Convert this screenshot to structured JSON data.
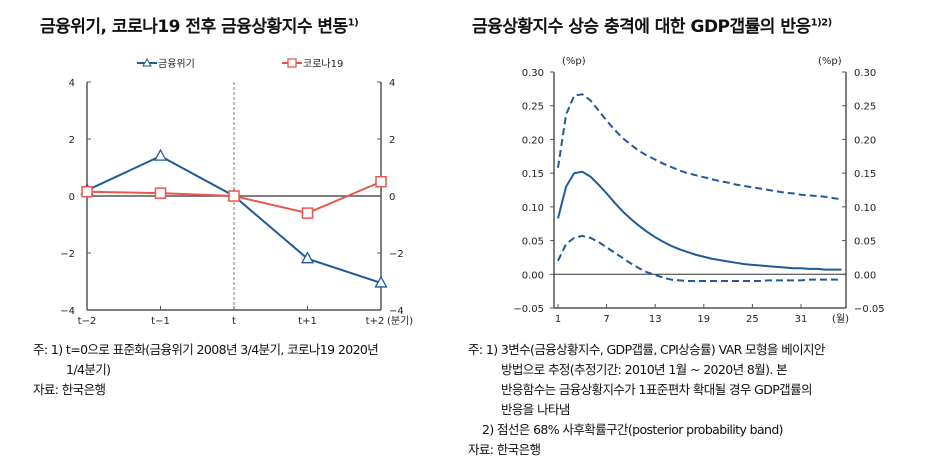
{
  "left": {
    "title": "금융위기, 코로나19 전후 금융상황지수 변동",
    "title_sup": "1)",
    "notes": [
      "주: 1) t=0으로 표준화(금융위기 2008년 3/4분기, 코로나19 2020년",
      "1/4분기)",
      "자료: 한국은행"
    ]
  },
  "right": {
    "title": "금융상황지수 상승 충격에 대한 GDP갭률의 반응",
    "title_sup": "1)2)",
    "notes": [
      "주: 1) 3변수(금융상황지수, GDP갭률, CPI상승률) VAR 모형을 베이지안",
      "방법으로 추정(추정기간: 2010년 1월 ~ 2020년 8월). 본",
      "반응함수는 금융상황지수가 1표준편차 확대될 경우 GDP갭률의",
      "반응을 나타냄",
      "2) 점선은 68% 사후확률구간(posterior probability band)",
      "자료: 한국은행"
    ]
  },
  "chart_data": [
    {
      "type": "line",
      "categories": [
        "t−2",
        "t−1",
        "t",
        "t+1",
        "t+2"
      ],
      "xlabel": "(분기)",
      "ylim": [
        -4,
        4
      ],
      "yticks": [
        "−4",
        "−2",
        "0",
        "2",
        "4"
      ],
      "legend": "top",
      "series": [
        {
          "name": "금융위기",
          "marker": "triangle",
          "color": "#1f5a9a",
          "values": [
            0.2,
            1.4,
            0,
            -2.2,
            -3.05
          ]
        },
        {
          "name": "코로나19",
          "marker": "square",
          "color": "#e8584a",
          "values": [
            0.15,
            0.1,
            0,
            -0.6,
            0.5
          ]
        }
      ]
    },
    {
      "type": "line",
      "x_range": [
        1,
        36
      ],
      "xticks": [
        "1",
        "7",
        "13",
        "19",
        "25",
        "31"
      ],
      "xlabel": "(월)",
      "ylabel_left": "(%p)",
      "ylabel_right": "(%p)",
      "ylim": [
        -0.05,
        0.3
      ],
      "yticks": [
        "−0.05",
        "0.00",
        "0.05",
        "0.10",
        "0.15",
        "0.20",
        "0.25",
        "0.30"
      ],
      "color": "#1f5a9a",
      "series": [
        {
          "style": "solid",
          "values": [
            0.083,
            0.13,
            0.15,
            0.152,
            0.145,
            0.133,
            0.12,
            0.106,
            0.093,
            0.082,
            0.072,
            0.063,
            0.055,
            0.048,
            0.042,
            0.037,
            0.033,
            0.029,
            0.026,
            0.023,
            0.021,
            0.019,
            0.017,
            0.015,
            0.014,
            0.013,
            0.012,
            0.011,
            0.01,
            0.009,
            0.009,
            0.008,
            0.008,
            0.007,
            0.007,
            0.007
          ]
        },
        {
          "style": "dashed",
          "values": [
            0.158,
            0.237,
            0.265,
            0.267,
            0.258,
            0.243,
            0.228,
            0.214,
            0.202,
            0.192,
            0.183,
            0.176,
            0.17,
            0.164,
            0.159,
            0.154,
            0.15,
            0.147,
            0.144,
            0.141,
            0.138,
            0.136,
            0.133,
            0.131,
            0.129,
            0.127,
            0.125,
            0.123,
            0.121,
            0.12,
            0.118,
            0.117,
            0.116,
            0.115,
            0.113,
            0.111
          ]
        },
        {
          "style": "dashed",
          "values": [
            0.02,
            0.045,
            0.054,
            0.057,
            0.054,
            0.048,
            0.04,
            0.032,
            0.024,
            0.016,
            0.009,
            0.003,
            -0.001,
            -0.005,
            -0.008,
            -0.009,
            -0.01,
            -0.01,
            -0.01,
            -0.01,
            -0.01,
            -0.01,
            -0.01,
            -0.01,
            -0.01,
            -0.01,
            -0.009,
            -0.009,
            -0.009,
            -0.009,
            -0.009,
            -0.008,
            -0.008,
            -0.008,
            -0.008,
            -0.008
          ]
        }
      ]
    }
  ]
}
